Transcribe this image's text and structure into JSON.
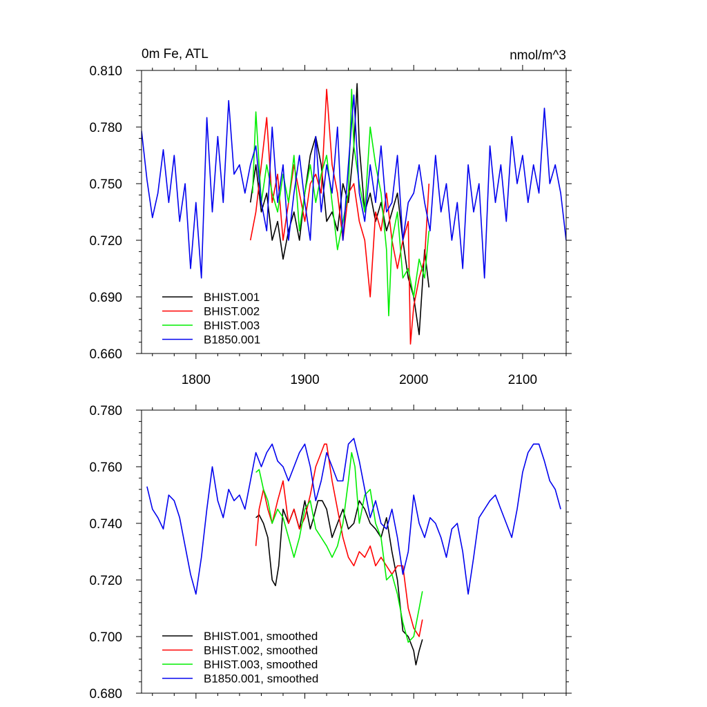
{
  "chart_data": [
    {
      "type": "line",
      "title": "0m Fe, ATL",
      "units": "nmol/m^3",
      "xlim": [
        1750,
        2140
      ],
      "ylim": [
        0.66,
        0.81
      ],
      "x_ticks": [
        1800,
        1900,
        2000,
        2100
      ],
      "x_tick_labels": [
        "1800",
        "1900",
        "2000",
        "2100"
      ],
      "y_ticks": [
        0.66,
        0.69,
        0.72,
        0.75,
        0.78,
        0.81
      ],
      "y_tick_labels": [
        "0.660",
        "0.690",
        "0.720",
        "0.750",
        "0.780",
        "0.810"
      ],
      "legend_position": "bottom-left",
      "series": [
        {
          "name": "BHIST.001",
          "color": "#000000",
          "x": [
            1850,
            1855,
            1860,
            1865,
            1870,
            1875,
            1880,
            1885,
            1890,
            1895,
            1900,
            1905,
            1910,
            1915,
            1920,
            1925,
            1930,
            1935,
            1940,
            1945,
            1948,
            1950,
            1955,
            1960,
            1965,
            1970,
            1975,
            1980,
            1985,
            1990,
            1995,
            2000,
            2005,
            2010,
            2014
          ],
          "y": [
            0.74,
            0.76,
            0.735,
            0.745,
            0.72,
            0.73,
            0.71,
            0.725,
            0.735,
            0.72,
            0.745,
            0.765,
            0.775,
            0.76,
            0.73,
            0.735,
            0.725,
            0.75,
            0.74,
            0.77,
            0.803,
            0.77,
            0.735,
            0.745,
            0.73,
            0.74,
            0.725,
            0.735,
            0.745,
            0.72,
            0.7,
            0.69,
            0.67,
            0.715,
            0.695
          ]
        },
        {
          "name": "BHIST.002",
          "color": "#ff0000",
          "x": [
            1850,
            1855,
            1860,
            1865,
            1870,
            1875,
            1880,
            1885,
            1890,
            1895,
            1900,
            1905,
            1910,
            1915,
            1920,
            1925,
            1930,
            1935,
            1940,
            1945,
            1950,
            1955,
            1960,
            1965,
            1970,
            1975,
            1980,
            1985,
            1990,
            1995,
            1997,
            2000,
            2005,
            2010,
            2014
          ],
          "y": [
            0.72,
            0.735,
            0.76,
            0.785,
            0.74,
            0.755,
            0.72,
            0.74,
            0.76,
            0.745,
            0.73,
            0.75,
            0.755,
            0.745,
            0.8,
            0.76,
            0.745,
            0.72,
            0.745,
            0.75,
            0.73,
            0.72,
            0.69,
            0.735,
            0.725,
            0.745,
            0.72,
            0.705,
            0.72,
            0.73,
            0.665,
            0.685,
            0.7,
            0.71,
            0.75
          ]
        },
        {
          "name": "BHIST.003",
          "color": "#00ee00",
          "x": [
            1852,
            1855,
            1860,
            1865,
            1870,
            1875,
            1880,
            1885,
            1890,
            1895,
            1900,
            1905,
            1910,
            1915,
            1920,
            1925,
            1930,
            1935,
            1940,
            1943,
            1945,
            1950,
            1955,
            1960,
            1965,
            1970,
            1975,
            1977,
            1980,
            1985,
            1990,
            1995,
            2000,
            2005,
            2010,
            2014
          ],
          "y": [
            0.745,
            0.788,
            0.74,
            0.76,
            0.745,
            0.735,
            0.755,
            0.74,
            0.765,
            0.725,
            0.745,
            0.76,
            0.74,
            0.755,
            0.765,
            0.74,
            0.715,
            0.73,
            0.745,
            0.8,
            0.77,
            0.75,
            0.735,
            0.78,
            0.76,
            0.745,
            0.715,
            0.68,
            0.72,
            0.735,
            0.7,
            0.705,
            0.69,
            0.71,
            0.7,
            0.725
          ]
        },
        {
          "name": "B1850.001",
          "color": "#0000ee",
          "x": [
            1750,
            1755,
            1760,
            1765,
            1770,
            1775,
            1780,
            1785,
            1790,
            1795,
            1800,
            1805,
            1810,
            1815,
            1820,
            1825,
            1830,
            1835,
            1840,
            1845,
            1850,
            1855,
            1860,
            1865,
            1870,
            1875,
            1880,
            1885,
            1890,
            1895,
            1900,
            1905,
            1910,
            1915,
            1920,
            1925,
            1930,
            1935,
            1940,
            1945,
            1950,
            1955,
            1960,
            1965,
            1970,
            1975,
            1980,
            1985,
            1990,
            1995,
            2000,
            2005,
            2010,
            2015,
            2020,
            2025,
            2030,
            2035,
            2040,
            2045,
            2050,
            2055,
            2060,
            2065,
            2070,
            2075,
            2080,
            2085,
            2090,
            2095,
            2100,
            2105,
            2110,
            2115,
            2120,
            2125,
            2130,
            2135,
            2140
          ],
          "y": [
            0.778,
            0.752,
            0.732,
            0.745,
            0.768,
            0.74,
            0.765,
            0.73,
            0.75,
            0.705,
            0.74,
            0.7,
            0.785,
            0.735,
            0.775,
            0.74,
            0.794,
            0.755,
            0.76,
            0.745,
            0.76,
            0.77,
            0.74,
            0.725,
            0.78,
            0.74,
            0.76,
            0.72,
            0.745,
            0.765,
            0.74,
            0.72,
            0.775,
            0.735,
            0.76,
            0.745,
            0.78,
            0.72,
            0.76,
            0.797,
            0.745,
            0.73,
            0.76,
            0.74,
            0.77,
            0.735,
            0.74,
            0.765,
            0.72,
            0.74,
            0.745,
            0.76,
            0.74,
            0.725,
            0.765,
            0.735,
            0.75,
            0.72,
            0.74,
            0.705,
            0.76,
            0.735,
            0.75,
            0.7,
            0.77,
            0.74,
            0.76,
            0.73,
            0.775,
            0.75,
            0.765,
            0.74,
            0.76,
            0.745,
            0.79,
            0.75,
            0.76,
            0.745,
            0.72
          ]
        }
      ]
    },
    {
      "type": "line",
      "xlim": [
        1750,
        2140
      ],
      "ylim": [
        0.68,
        0.78
      ],
      "x_ticks": [
        1800,
        1900,
        2000,
        2100
      ],
      "y_ticks": [
        0.68,
        0.7,
        0.72,
        0.74,
        0.76,
        0.78
      ],
      "y_tick_labels": [
        "0.680",
        "0.700",
        "0.720",
        "0.740",
        "0.760",
        "0.780"
      ],
      "legend_position": "bottom-left",
      "series": [
        {
          "name": "BHIST.001, smoothed",
          "color": "#000000",
          "x": [
            1855,
            1858,
            1862,
            1866,
            1870,
            1873,
            1876,
            1880,
            1885,
            1890,
            1895,
            1900,
            1905,
            1908,
            1912,
            1916,
            1920,
            1925,
            1930,
            1935,
            1940,
            1945,
            1950,
            1955,
            1960,
            1965,
            1970,
            1975,
            1980,
            1985,
            1990,
            1995,
            2000,
            2002,
            2005,
            2008
          ],
          "y": [
            0.742,
            0.743,
            0.74,
            0.735,
            0.72,
            0.718,
            0.725,
            0.745,
            0.74,
            0.745,
            0.738,
            0.748,
            0.738,
            0.742,
            0.748,
            0.748,
            0.745,
            0.735,
            0.74,
            0.745,
            0.738,
            0.74,
            0.748,
            0.745,
            0.74,
            0.738,
            0.735,
            0.742,
            0.73,
            0.72,
            0.702,
            0.7,
            0.695,
            0.69,
            0.695,
            0.699
          ]
        },
        {
          "name": "BHIST.002, smoothed",
          "color": "#ff0000",
          "x": [
            1855,
            1858,
            1862,
            1866,
            1870,
            1875,
            1880,
            1885,
            1890,
            1895,
            1900,
            1905,
            1910,
            1915,
            1918,
            1920,
            1925,
            1930,
            1935,
            1940,
            1945,
            1950,
            1955,
            1960,
            1965,
            1970,
            1975,
            1980,
            1985,
            1990,
            1995,
            2000,
            2005,
            2008
          ],
          "y": [
            0.732,
            0.745,
            0.752,
            0.745,
            0.74,
            0.748,
            0.755,
            0.74,
            0.745,
            0.738,
            0.742,
            0.75,
            0.76,
            0.765,
            0.768,
            0.768,
            0.755,
            0.745,
            0.735,
            0.728,
            0.725,
            0.73,
            0.728,
            0.732,
            0.725,
            0.728,
            0.725,
            0.722,
            0.725,
            0.725,
            0.71,
            0.703,
            0.7,
            0.706
          ]
        },
        {
          "name": "BHIST.003, smoothed",
          "color": "#00ee00",
          "x": [
            1855,
            1858,
            1862,
            1866,
            1870,
            1875,
            1880,
            1885,
            1890,
            1895,
            1900,
            1905,
            1910,
            1915,
            1920,
            1925,
            1930,
            1935,
            1940,
            1943,
            1946,
            1950,
            1955,
            1960,
            1965,
            1970,
            1975,
            1980,
            1985,
            1990,
            1995,
            2000,
            2005,
            2008
          ],
          "y": [
            0.758,
            0.759,
            0.752,
            0.748,
            0.74,
            0.745,
            0.742,
            0.735,
            0.728,
            0.735,
            0.745,
            0.748,
            0.738,
            0.735,
            0.732,
            0.728,
            0.732,
            0.74,
            0.755,
            0.765,
            0.76,
            0.74,
            0.75,
            0.752,
            0.74,
            0.735,
            0.72,
            0.722,
            0.715,
            0.705,
            0.698,
            0.7,
            0.71,
            0.716
          ]
        },
        {
          "name": "B1850.001, smoothed",
          "color": "#0000ee",
          "x": [
            1755,
            1760,
            1765,
            1770,
            1775,
            1780,
            1785,
            1790,
            1795,
            1800,
            1805,
            1810,
            1815,
            1820,
            1825,
            1830,
            1835,
            1840,
            1845,
            1850,
            1855,
            1860,
            1865,
            1870,
            1875,
            1880,
            1885,
            1890,
            1895,
            1900,
            1905,
            1910,
            1915,
            1920,
            1925,
            1930,
            1935,
            1940,
            1945,
            1950,
            1955,
            1960,
            1965,
            1970,
            1975,
            1980,
            1985,
            1990,
            1995,
            2000,
            2005,
            2010,
            2015,
            2020,
            2025,
            2030,
            2035,
            2040,
            2045,
            2050,
            2055,
            2060,
            2065,
            2070,
            2075,
            2080,
            2085,
            2090,
            2095,
            2100,
            2105,
            2110,
            2115,
            2120,
            2125,
            2130,
            2135
          ],
          "y": [
            0.753,
            0.745,
            0.742,
            0.738,
            0.75,
            0.748,
            0.742,
            0.732,
            0.722,
            0.715,
            0.728,
            0.745,
            0.76,
            0.748,
            0.742,
            0.752,
            0.748,
            0.75,
            0.745,
            0.755,
            0.765,
            0.76,
            0.765,
            0.768,
            0.762,
            0.76,
            0.755,
            0.76,
            0.765,
            0.768,
            0.76,
            0.748,
            0.755,
            0.765,
            0.76,
            0.755,
            0.755,
            0.768,
            0.77,
            0.762,
            0.752,
            0.742,
            0.748,
            0.74,
            0.738,
            0.745,
            0.735,
            0.722,
            0.73,
            0.75,
            0.74,
            0.735,
            0.742,
            0.74,
            0.735,
            0.728,
            0.738,
            0.74,
            0.73,
            0.715,
            0.728,
            0.742,
            0.745,
            0.748,
            0.75,
            0.745,
            0.74,
            0.735,
            0.745,
            0.758,
            0.765,
            0.768,
            0.768,
            0.762,
            0.755,
            0.752,
            0.745
          ]
        }
      ]
    }
  ]
}
